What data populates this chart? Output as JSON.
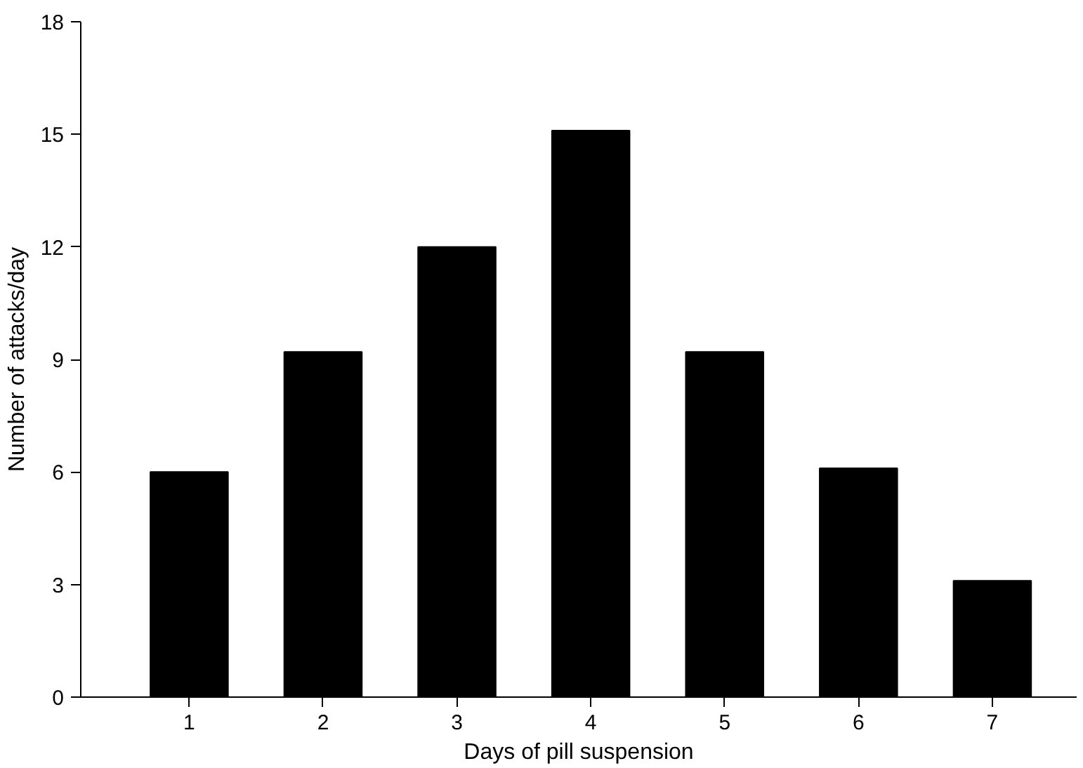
{
  "chart_data": {
    "type": "bar",
    "xlabel": "Days of pill suspension",
    "ylabel": "Number of attacks/day",
    "categories": [
      "1",
      "2",
      "3",
      "4",
      "5",
      "6",
      "7"
    ],
    "values": [
      6,
      9.2,
      12,
      15.1,
      9.2,
      6.1,
      3.1
    ],
    "color": "#000000",
    "ylim": [
      0,
      18
    ],
    "yticks": [
      0,
      3,
      6,
      9,
      12,
      15,
      18
    ],
    "grid": false
  }
}
